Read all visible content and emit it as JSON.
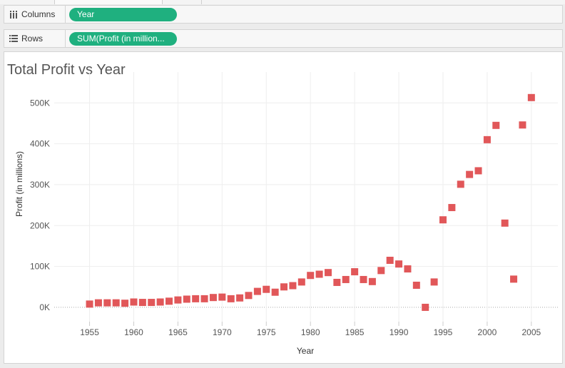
{
  "shelves": {
    "columns": {
      "label": "Columns",
      "icon": "columns-icon",
      "pill": "Year"
    },
    "rows": {
      "label": "Rows",
      "icon": "rows-icon",
      "pill": "SUM(Profit (in million..."
    }
  },
  "colors": {
    "pill": "#1fb07f",
    "marker": "#e15759",
    "zero_line": "#aaaaaa"
  },
  "chart_data": {
    "type": "scatter",
    "title": "Total Profit vs Year",
    "xlabel": "Year",
    "ylabel": "Profit (in millions)",
    "xlim": [
      1951,
      2008
    ],
    "ylim": [
      -35000,
      565000
    ],
    "x_ticks": [
      1955,
      1960,
      1965,
      1970,
      1975,
      1980,
      1985,
      1990,
      1995,
      2000,
      2005
    ],
    "y_ticks": [
      0,
      100000,
      200000,
      300000,
      400000,
      500000
    ],
    "y_tick_labels": [
      "0K",
      "100K",
      "200K",
      "300K",
      "400K",
      "500K"
    ],
    "grid": true,
    "marker": "square",
    "x": [
      1955,
      1956,
      1957,
      1958,
      1959,
      1960,
      1961,
      1962,
      1963,
      1964,
      1965,
      1966,
      1967,
      1968,
      1969,
      1970,
      1971,
      1972,
      1973,
      1974,
      1975,
      1976,
      1977,
      1978,
      1979,
      1980,
      1981,
      1982,
      1983,
      1984,
      1985,
      1986,
      1987,
      1988,
      1989,
      1990,
      1991,
      1992,
      1993,
      1994,
      1995,
      1996,
      1997,
      1998,
      1999,
      2000,
      2001,
      2002,
      2003,
      2004,
      2005
    ],
    "y": [
      8000,
      11000,
      11000,
      11000,
      10000,
      13000,
      12000,
      12000,
      13000,
      15000,
      18000,
      20000,
      21000,
      21000,
      24000,
      25000,
      21000,
      23000,
      29000,
      39000,
      44000,
      37000,
      50000,
      53000,
      62000,
      78000,
      81000,
      85000,
      61000,
      68000,
      87000,
      68000,
      63000,
      90000,
      115000,
      106000,
      94000,
      54000,
      0,
      62000,
      214000,
      244000,
      301000,
      325000,
      334000,
      410000,
      445000,
      206000,
      69000,
      446000,
      513000
    ]
  }
}
